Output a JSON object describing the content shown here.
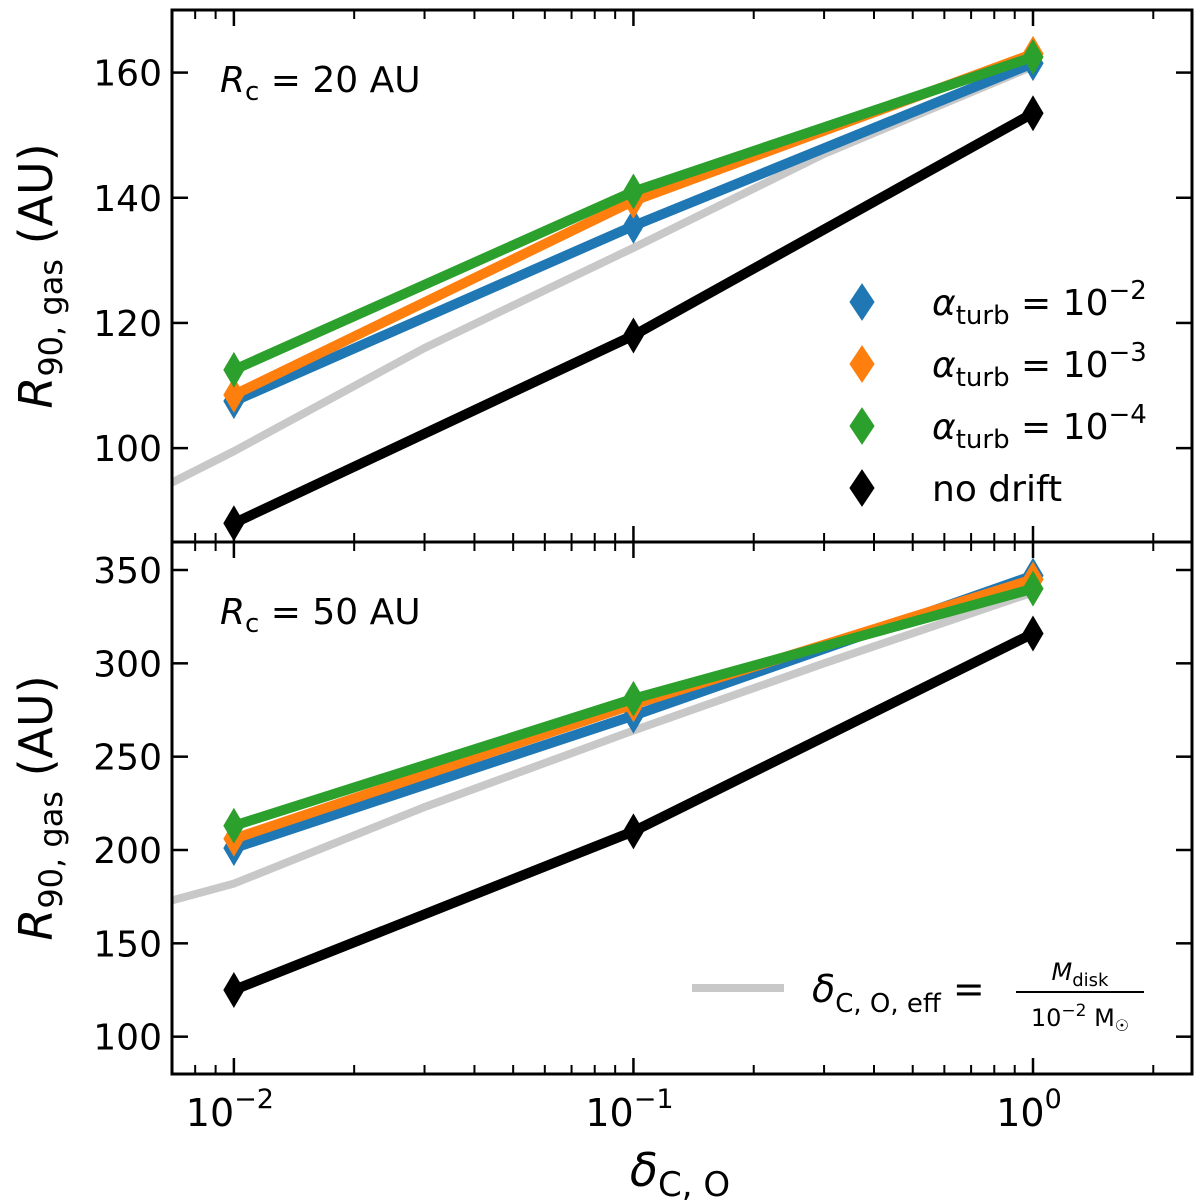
{
  "chart_data": [
    {
      "type": "line",
      "panel": "top",
      "annotation": {
        "symbol": "R",
        "subscript": "c",
        "text": " = 20 AU"
      },
      "ylabel": {
        "symbol": "R",
        "subscript": "90, gas",
        "unit": " (AU)"
      },
      "xscale": "log",
      "xlim": [
        0.007,
        2.5
      ],
      "ylim": [
        85,
        170
      ],
      "yticks": [
        100,
        120,
        140,
        160
      ],
      "x": [
        0.01,
        0.1,
        1.0
      ],
      "series": [
        {
          "name": "alpha_turb = 10^-2",
          "color": "#1f77b4",
          "values": [
            107.5,
            135.5,
            161.5
          ]
        },
        {
          "name": "alpha_turb = 10^-3",
          "color": "#ff7f0e",
          "values": [
            108.5,
            139.5,
            163.0
          ]
        },
        {
          "name": "alpha_turb = 10^-4",
          "color": "#2ca02c",
          "values": [
            112.5,
            141.0,
            162.5
          ]
        },
        {
          "name": "no drift",
          "color": "#000000",
          "values": [
            88.0,
            118.0,
            153.5
          ]
        }
      ],
      "reference_curve": {
        "name": "delta_CO_eff",
        "color": "#c8c8c8",
        "x": [
          0.007,
          0.01,
          0.03,
          0.1,
          0.3,
          1.0
        ],
        "values": [
          94.5,
          99.5,
          116.0,
          132.0,
          147.0,
          161.0
        ]
      },
      "legend": {
        "placement": "center-right",
        "entries": [
          {
            "symbol": "α",
            "subscript": "turb",
            "text": " = 10",
            "exponent": "−2",
            "color": "#1f77b4"
          },
          {
            "symbol": "α",
            "subscript": "turb",
            "text": " = 10",
            "exponent": "−3",
            "color": "#ff7f0e"
          },
          {
            "symbol": "α",
            "subscript": "turb",
            "text": " = 10",
            "exponent": "−4",
            "color": "#2ca02c"
          },
          {
            "symbol": "",
            "subscript": "",
            "text": "no drift",
            "exponent": "",
            "color": "#000000"
          }
        ]
      }
    },
    {
      "type": "line",
      "panel": "bottom",
      "annotation": {
        "symbol": "R",
        "subscript": "c",
        "text": " = 50 AU"
      },
      "ylabel": {
        "symbol": "R",
        "subscript": "90, gas",
        "unit": " (AU)"
      },
      "xscale": "log",
      "xlim": [
        0.007,
        2.5
      ],
      "ylim": [
        80,
        365
      ],
      "yticks": [
        100,
        150,
        200,
        250,
        300,
        350
      ],
      "x": [
        0.01,
        0.1,
        1.0
      ],
      "series": [
        {
          "name": "alpha_turb = 10^-2",
          "color": "#1f77b4",
          "values": [
            201.0,
            272.0,
            347.0
          ]
        },
        {
          "name": "alpha_turb = 10^-3",
          "color": "#ff7f0e",
          "values": [
            206.0,
            278.0,
            345.0
          ]
        },
        {
          "name": "alpha_turb = 10^-4",
          "color": "#2ca02c",
          "values": [
            213.0,
            281.0,
            340.0
          ]
        },
        {
          "name": "no drift",
          "color": "#000000",
          "values": [
            125.0,
            210.0,
            316.0
          ]
        }
      ],
      "reference_curve": {
        "name": "delta_CO_eff",
        "color": "#c8c8c8",
        "x": [
          0.007,
          0.01,
          0.03,
          0.1,
          0.3,
          1.0
        ],
        "values": [
          173.0,
          182.0,
          223.0,
          264.0,
          300.0,
          338.0
        ]
      },
      "legend": {
        "placement": "bottom-right",
        "entries": [
          {
            "symbol": "δ",
            "subscript": "C, O, eff",
            "text": " = ",
            "numerator": "M",
            "numerator_sub": "disk",
            "denominator": "10",
            "denominator_exp": "−2",
            "denominator_unit": " M",
            "denominator_unit_sub": "☉",
            "color": "#c8c8c8"
          }
        ]
      }
    }
  ],
  "xaxis": {
    "label_symbol": "δ",
    "label_subscript": "C, O",
    "major_ticks": [
      0.01,
      0.1,
      1.0
    ],
    "tick_labels": [
      {
        "base": "10",
        "exponent": "−2"
      },
      {
        "base": "10",
        "exponent": "−1"
      },
      {
        "base": "10",
        "exponent": "0"
      }
    ]
  }
}
